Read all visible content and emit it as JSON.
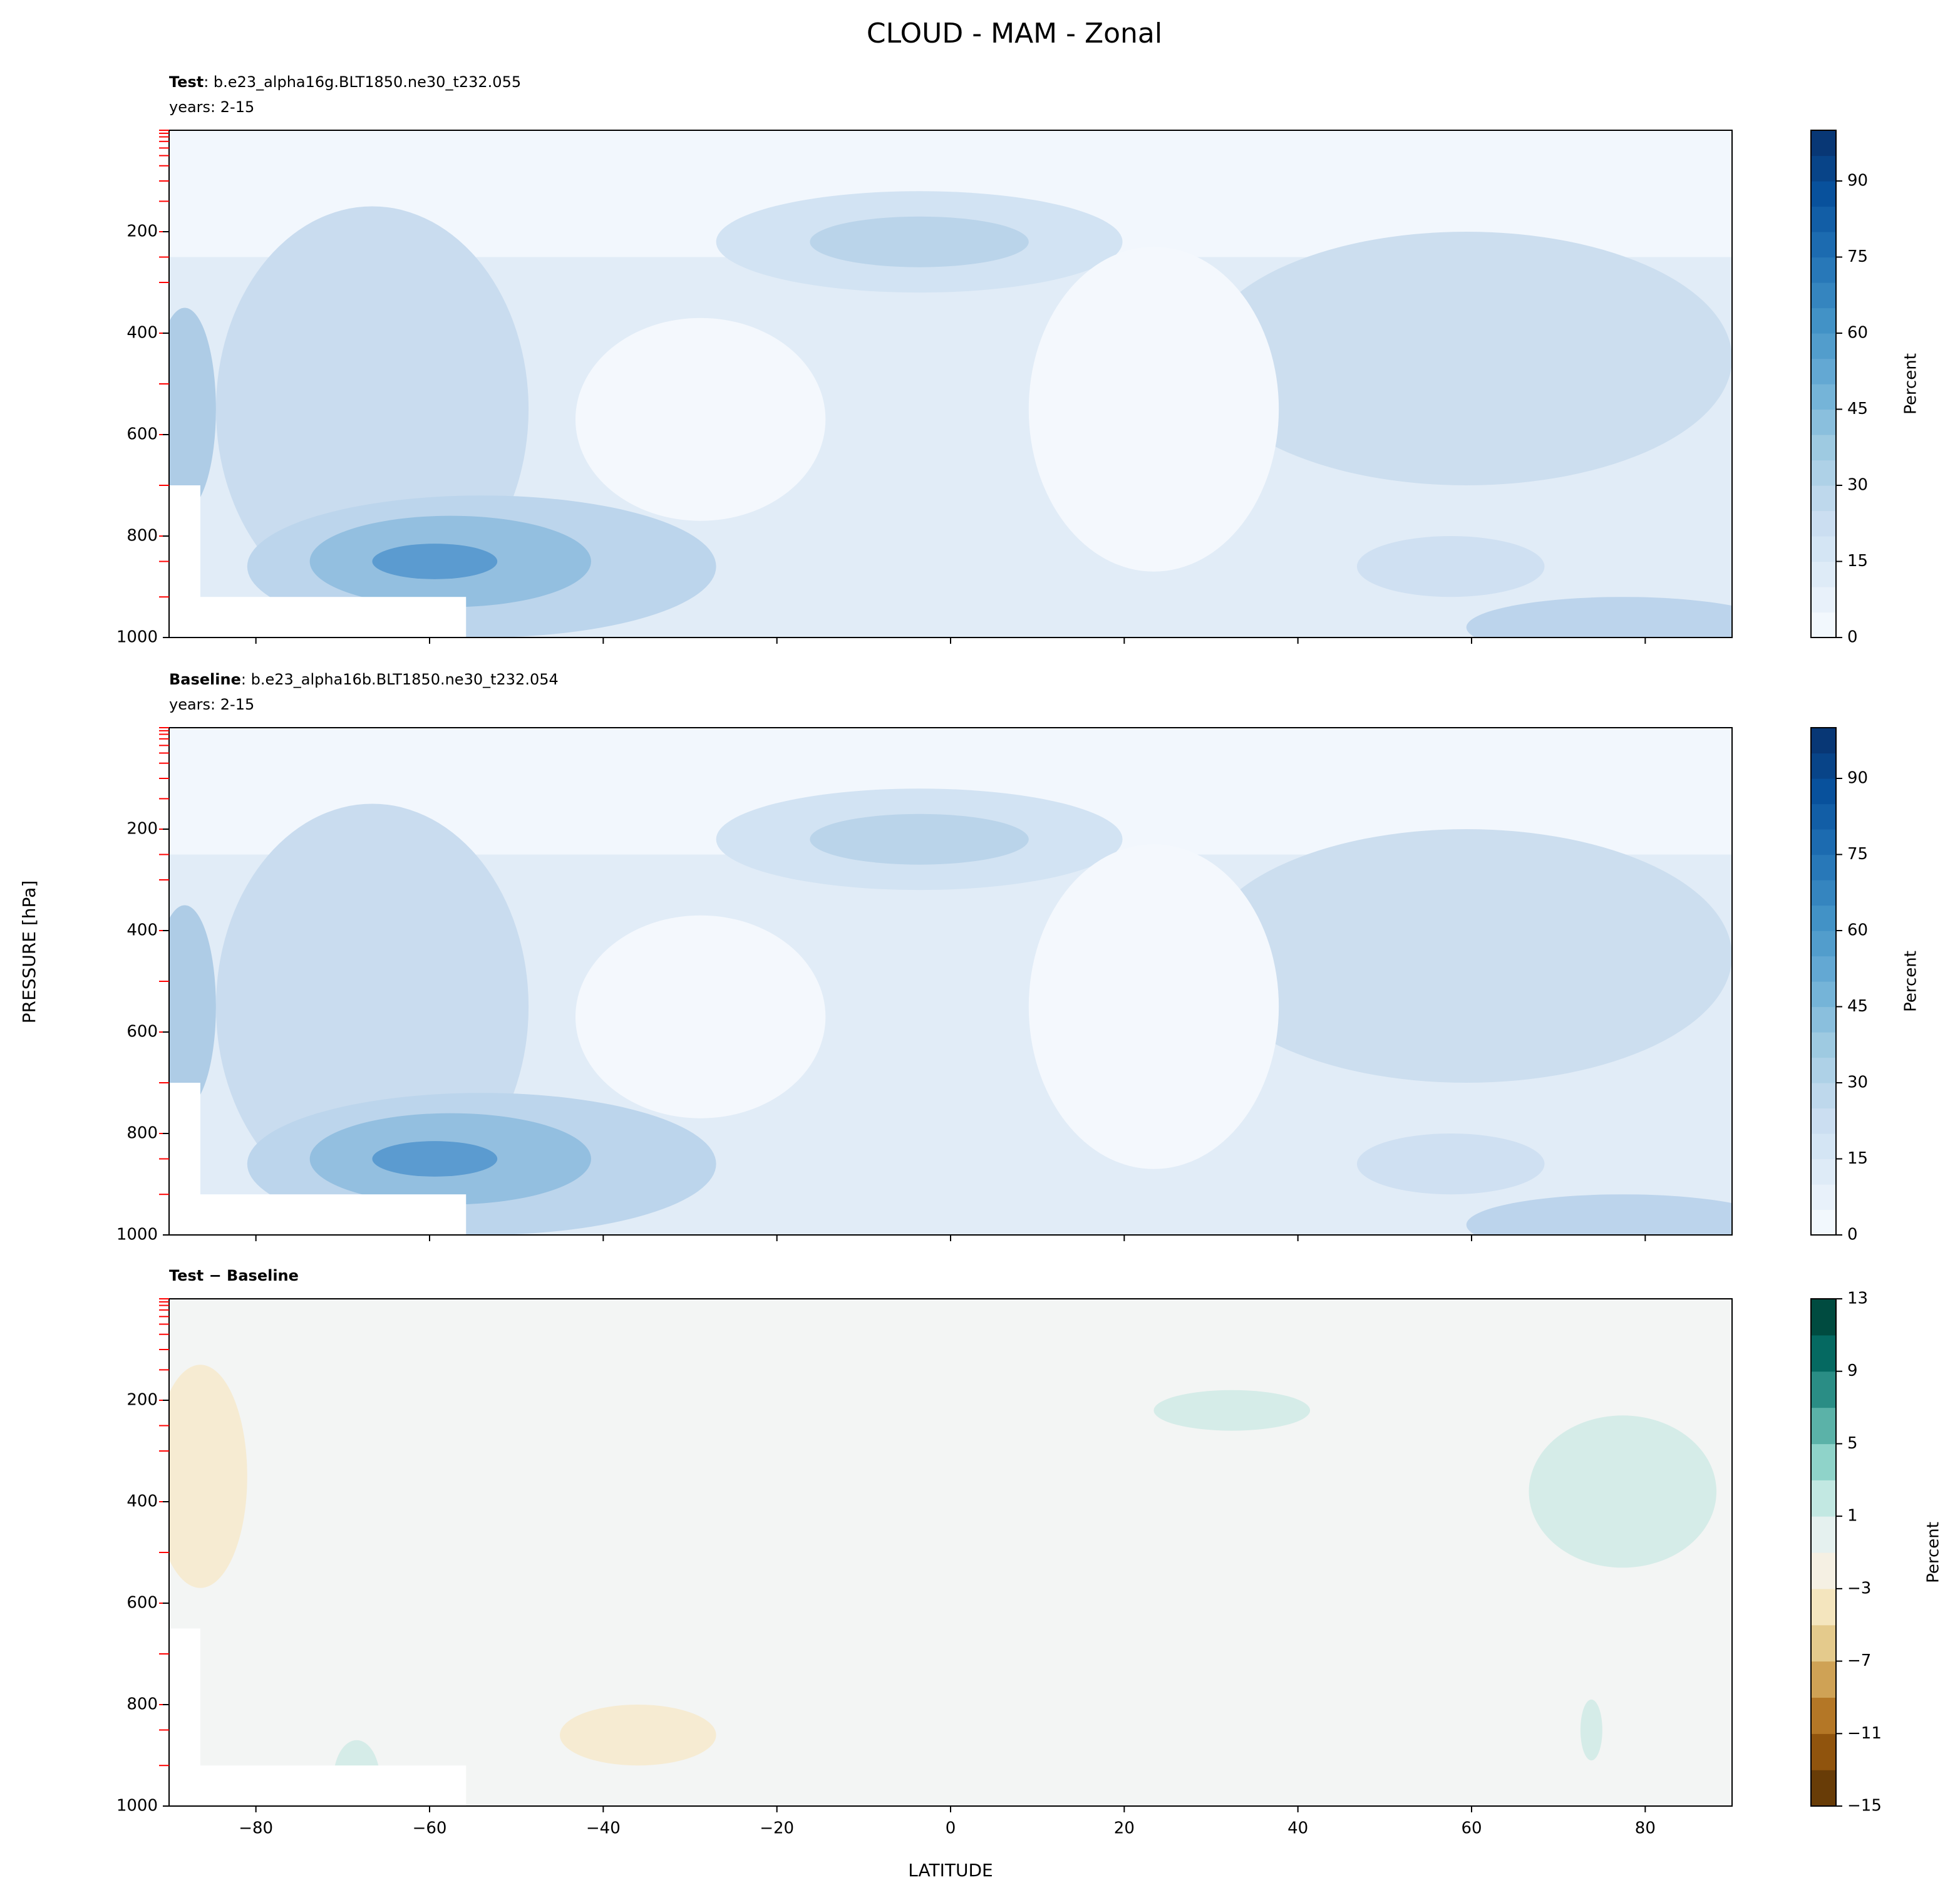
{
  "title": "CLOUD - MAM - Zonal",
  "ylabel": "PRESSURE [hPa]",
  "xlabel": "LATITUDE",
  "chart_data": [
    {
      "type": "contour",
      "name": "Test",
      "case": ": b.e23_alpha16g.BLT1850.ne30_t232.055",
      "years": "years: 2-15",
      "xlim": [
        -90,
        90
      ],
      "xticks": [
        -80,
        -60,
        -40,
        -20,
        0,
        20,
        40,
        60,
        80
      ],
      "xtick_labels": false,
      "ylim": [
        1000,
        0
      ],
      "yticks": [
        200,
        400,
        600,
        800,
        1000
      ],
      "colorbar": {
        "label": "Percent",
        "lim": [
          0,
          100
        ],
        "ticks": [
          0,
          15,
          30,
          45,
          60,
          75,
          90
        ],
        "levels": [
          0,
          5,
          10,
          15,
          20,
          25,
          30,
          35,
          40,
          45,
          50,
          55,
          60,
          65,
          70,
          75,
          80,
          85,
          90,
          95,
          100
        ],
        "cmap": [
          "#f7fbff",
          "#deebf7",
          "#c6dbef",
          "#9ecae1",
          "#6baed6",
          "#4292c6",
          "#2171b5",
          "#08519c",
          "#08306b"
        ]
      }
    },
    {
      "type": "contour",
      "name": "Baseline",
      "case": ": b.e23_alpha16b.BLT1850.ne30_t232.054",
      "years": "years: 2-15",
      "xlim": [
        -90,
        90
      ],
      "xticks": [
        -80,
        -60,
        -40,
        -20,
        0,
        20,
        40,
        60,
        80
      ],
      "xtick_labels": false,
      "ylim": [
        1000,
        0
      ],
      "yticks": [
        200,
        400,
        600,
        800,
        1000
      ],
      "colorbar": {
        "label": "Percent",
        "lim": [
          0,
          100
        ],
        "ticks": [
          0,
          15,
          30,
          45,
          60,
          75,
          90
        ],
        "levels": [
          0,
          5,
          10,
          15,
          20,
          25,
          30,
          35,
          40,
          45,
          50,
          55,
          60,
          65,
          70,
          75,
          80,
          85,
          90,
          95,
          100
        ],
        "cmap": [
          "#f7fbff",
          "#deebf7",
          "#c6dbef",
          "#9ecae1",
          "#6baed6",
          "#4292c6",
          "#2171b5",
          "#08519c",
          "#08306b"
        ]
      }
    },
    {
      "type": "contour",
      "name": "Test − Baseline",
      "xlim": [
        -90,
        90
      ],
      "xticks": [
        {
          "value": -80,
          "label": "−80"
        },
        {
          "value": -60,
          "label": "−60"
        },
        {
          "value": -40,
          "label": "−40"
        },
        {
          "value": -20,
          "label": "−20"
        },
        0,
        20,
        40,
        60,
        80
      ],
      "xtick_labels": true,
      "ylim": [
        1000,
        0
      ],
      "yticks": [
        200,
        400,
        600,
        800,
        1000
      ],
      "colorbar": {
        "label": "Percent",
        "lim": [
          -15,
          13
        ],
        "ticks": [
          {
            "value": -15,
            "label": "−15"
          },
          {
            "value": -11,
            "label": "−11"
          },
          {
            "value": -7,
            "label": "−7"
          },
          {
            "value": -3,
            "label": "−3"
          },
          1,
          5,
          9,
          13
        ],
        "levels": [
          -15,
          -13,
          -11,
          -9,
          -7,
          -5,
          -3,
          -1,
          1,
          3,
          5,
          7,
          9,
          11,
          13
        ],
        "cmap": [
          "#543005",
          "#8c510a",
          "#bf812d",
          "#dfc27d",
          "#f6e8c3",
          "#f5f5f5",
          "#c7eae5",
          "#80cdc1",
          "#35978f",
          "#01665e",
          "#003c30"
        ]
      }
    }
  ]
}
